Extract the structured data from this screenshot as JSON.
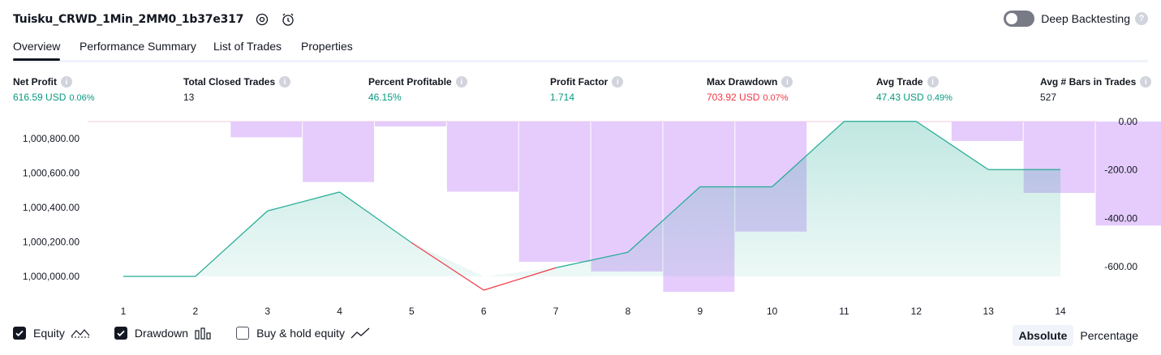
{
  "header": {
    "strategy_name": "Tuisku_CRWD_1Min_2MM0_1b37e317",
    "settings_icon": "settings-gear-icon",
    "alert_icon": "add-alert-icon",
    "deep_backtesting_label": "Deep Backtesting",
    "deep_backtesting_enabled": false,
    "help_glyph": "?"
  },
  "tabs": [
    {
      "label": "Overview",
      "active": true
    },
    {
      "label": "Performance Summary",
      "active": false
    },
    {
      "label": "List of Trades",
      "active": false
    },
    {
      "label": "Properties",
      "active": false
    }
  ],
  "metrics": [
    {
      "label": "Net Profit",
      "value": "616.59 USD",
      "pct": "0.06%",
      "color": "#089981"
    },
    {
      "label": "Total Closed Trades",
      "value": "13",
      "pct": "",
      "color": "#131722"
    },
    {
      "label": "Percent Profitable",
      "value": "46.15%",
      "pct": "",
      "color": "#089981"
    },
    {
      "label": "Profit Factor",
      "value": "1.714",
      "pct": "",
      "color": "#089981"
    },
    {
      "label": "Max Drawdown",
      "value": "703.92 USD",
      "pct": "0.07%",
      "color": "#f23645"
    },
    {
      "label": "Avg Trade",
      "value": "47.43 USD",
      "pct": "0.49%",
      "color": "#089981"
    },
    {
      "label": "Avg # Bars in Trades",
      "value": "527",
      "pct": "",
      "color": "#131722"
    }
  ],
  "info_glyph": "i",
  "chart_data": {
    "type": "line",
    "x": [
      1,
      2,
      3,
      4,
      5,
      6,
      7,
      8,
      9,
      10,
      11,
      12,
      13,
      14
    ],
    "x_tick_labels": [
      "1",
      "2",
      "3",
      "4",
      "5",
      "6",
      "7",
      "8",
      "9",
      "10",
      "11",
      "12",
      "13",
      "14"
    ],
    "left_axis": {
      "ticks": [
        "1,000,800.00",
        "1,000,600.00",
        "1,000,400.00",
        "1,000,200.00",
        "1,000,000.00"
      ],
      "tick_values": [
        1000800,
        1000600,
        1000400,
        1000200,
        1000000
      ]
    },
    "right_axis": {
      "ticks": [
        "0.00",
        "-200.00",
        "-400.00",
        "-600.00"
      ],
      "tick_values": [
        0,
        -200,
        -400,
        -600
      ]
    },
    "series": [
      {
        "name": "Equity",
        "kind": "line-area",
        "axis": "left",
        "color_up": "#22ab94",
        "color_down": "#f23645",
        "values": [
          1000000,
          1000000,
          1000380,
          1000490,
          1000195,
          999920,
          1000050,
          1000140,
          1000520,
          1000520,
          1000900,
          1000900,
          1000620,
          1000620
        ]
      },
      {
        "name": "Drawdown",
        "kind": "bar",
        "axis": "right",
        "color": "#e0c3fc",
        "values": [
          0,
          -65,
          -250,
          -20,
          -290,
          -580,
          -620,
          -704,
          -455,
          0,
          0,
          -80,
          -295,
          -430
        ]
      }
    ],
    "legend": [
      {
        "label": "Equity",
        "checked": true,
        "icon": "equity-line-icon"
      },
      {
        "label": "Drawdown",
        "checked": true,
        "icon": "drawdown-bars-icon"
      },
      {
        "label": "Buy & hold equity",
        "checked": false,
        "icon": "buy-hold-line-icon"
      }
    ]
  },
  "view_modes": [
    {
      "label": "Absolute",
      "active": true
    },
    {
      "label": "Percentage",
      "active": false
    }
  ]
}
